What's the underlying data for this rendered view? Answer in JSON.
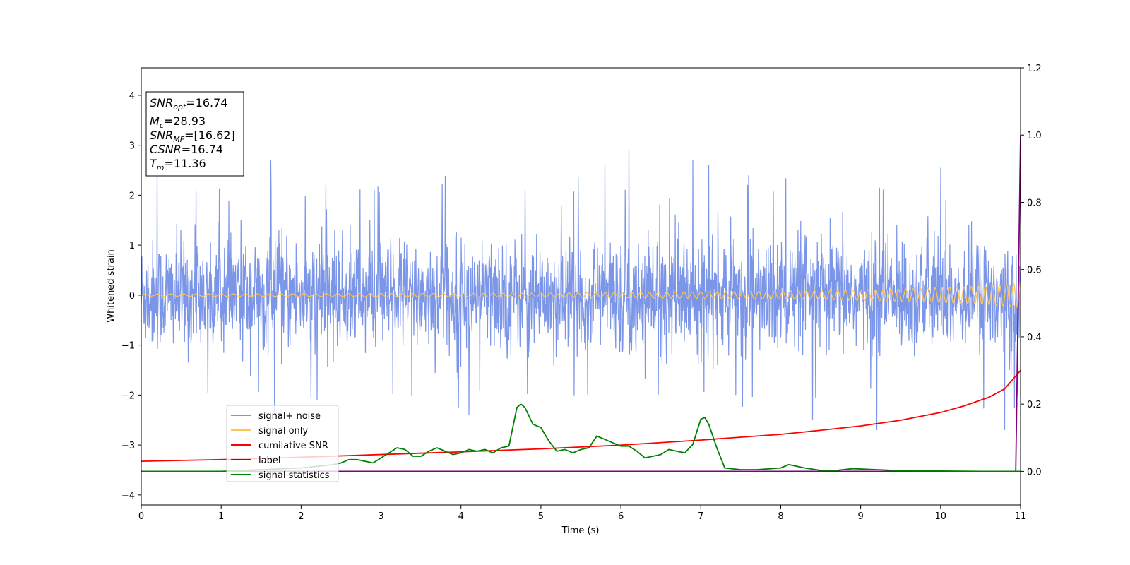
{
  "chart_data": {
    "type": "line",
    "title": "",
    "xlabel": "Time (s)",
    "ylabel": "Whitened strain",
    "xlim": [
      0,
      11
    ],
    "ylim": [
      -4.2,
      4.55
    ],
    "y2lim": [
      -0.1,
      1.2
    ],
    "x_ticks": [
      "0",
      "1",
      "2",
      "3",
      "4",
      "5",
      "6",
      "7",
      "8",
      "9",
      "10",
      "11"
    ],
    "y_ticks": [
      "4",
      "3",
      "2",
      "1",
      "0",
      "−1",
      "−2",
      "−3",
      "−4"
    ],
    "y_tick_values": [
      4,
      3,
      2,
      1,
      0,
      -1,
      -2,
      -3,
      -4
    ],
    "y2_ticks": [
      "0.0",
      "0.2",
      "0.4",
      "0.6",
      "0.8",
      "1.0",
      "1.2"
    ],
    "y2_tick_values": [
      0.0,
      0.2,
      0.4,
      0.6,
      0.8,
      1.0,
      1.2
    ],
    "grid": false,
    "legend_position": "lower-left",
    "annotation": {
      "lines": [
        {
          "base": "SNR",
          "sub": "opt",
          "rest": "=16.74"
        },
        {
          "base": "M",
          "sub": "c",
          "rest": "=28.93"
        },
        {
          "base": "SNR",
          "sub": "MF",
          "rest": "=[16.62]"
        },
        {
          "base": "CSNR",
          "sub": "",
          "rest": "=16.74"
        },
        {
          "base": "T",
          "sub": "m",
          "rest": "=11.36"
        }
      ]
    },
    "series": [
      {
        "name": "signal+ noise",
        "axis": "left",
        "color": "#7b95e8",
        "description_values": {
          "envelope_typical": [
            -1.3,
            1.3
          ],
          "peak_max": 2.9,
          "peak_min": -2.7
        },
        "peaks": [
          [
            0.2,
            2.4
          ],
          [
            1.62,
            2.7
          ],
          [
            2.2,
            -2.1
          ],
          [
            4.1,
            -2.4
          ],
          [
            4.8,
            2.1
          ],
          [
            5.8,
            2.6
          ],
          [
            6.1,
            2.9
          ],
          [
            6.9,
            2.7
          ],
          [
            7.1,
            2.6
          ],
          [
            7.6,
            2.4
          ],
          [
            8.4,
            -2.5
          ],
          [
            9.2,
            -2.7
          ],
          [
            10.0,
            2.55
          ],
          [
            10.8,
            -2.7
          ]
        ]
      },
      {
        "name": "signal only",
        "axis": "left",
        "color": "#ffc457",
        "amplitude_points": [
          [
            0,
            0.02
          ],
          [
            5,
            0.04
          ],
          [
            8,
            0.08
          ],
          [
            9.5,
            0.12
          ],
          [
            10.5,
            0.18
          ],
          [
            11,
            0.25
          ]
        ]
      },
      {
        "name": "cumilative SNR",
        "axis": "right",
        "color": "#ff0000",
        "x": [
          0,
          1,
          2,
          3,
          4,
          5,
          6,
          7,
          8,
          8.5,
          9,
          9.5,
          10,
          10.3,
          10.6,
          10.8,
          11
        ],
        "y": [
          0.03,
          0.035,
          0.042,
          0.05,
          0.058,
          0.067,
          0.078,
          0.093,
          0.11,
          0.122,
          0.135,
          0.152,
          0.175,
          0.195,
          0.22,
          0.245,
          0.3
        ]
      },
      {
        "name": "label",
        "axis": "right",
        "color": "#800080",
        "x": [
          0,
          10.94,
          11
        ],
        "y": [
          0.0,
          0.0,
          1.0
        ]
      },
      {
        "name": "signal statistics",
        "axis": "right",
        "color": "#008000",
        "x": [
          0,
          1,
          2,
          2.4,
          2.5,
          2.6,
          2.7,
          2.8,
          2.9,
          3.0,
          3.1,
          3.2,
          3.3,
          3.4,
          3.5,
          3.6,
          3.7,
          3.8,
          3.9,
          4.0,
          4.1,
          4.2,
          4.3,
          4.4,
          4.5,
          4.6,
          4.7,
          4.75,
          4.8,
          4.9,
          5.0,
          5.1,
          5.2,
          5.3,
          5.4,
          5.5,
          5.6,
          5.7,
          5.75,
          5.8,
          5.9,
          6.0,
          6.1,
          6.2,
          6.3,
          6.4,
          6.5,
          6.6,
          6.7,
          6.8,
          6.9,
          7.0,
          7.05,
          7.1,
          7.2,
          7.3,
          7.5,
          7.7,
          8.0,
          8.1,
          8.3,
          8.5,
          8.7,
          8.9,
          9.2,
          9.5,
          10.0,
          10.5,
          11
        ],
        "y": [
          0.0,
          0.0,
          0.01,
          0.02,
          0.025,
          0.035,
          0.035,
          0.03,
          0.025,
          0.04,
          0.055,
          0.07,
          0.065,
          0.045,
          0.045,
          0.06,
          0.07,
          0.06,
          0.05,
          0.055,
          0.065,
          0.06,
          0.065,
          0.055,
          0.07,
          0.075,
          0.19,
          0.2,
          0.19,
          0.14,
          0.13,
          0.09,
          0.06,
          0.065,
          0.055,
          0.065,
          0.07,
          0.105,
          0.1,
          0.095,
          0.085,
          0.075,
          0.075,
          0.06,
          0.04,
          0.045,
          0.05,
          0.065,
          0.06,
          0.055,
          0.08,
          0.155,
          0.16,
          0.14,
          0.07,
          0.01,
          0.005,
          0.005,
          0.01,
          0.02,
          0.01,
          0.003,
          0.003,
          0.008,
          0.005,
          0.002,
          0.001,
          0.0,
          0.0
        ]
      }
    ]
  }
}
